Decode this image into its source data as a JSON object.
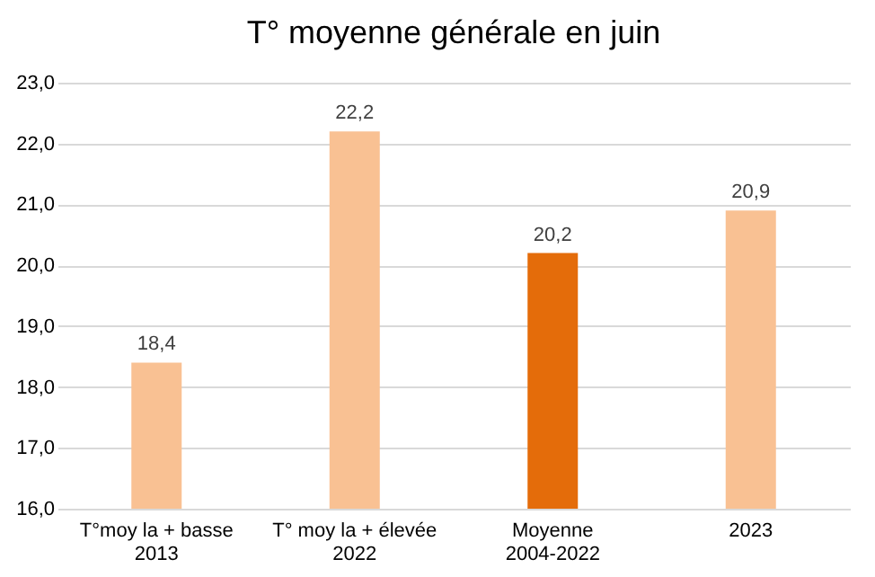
{
  "chart_data": {
    "type": "bar",
    "title": "T° moyenne générale en juin",
    "categories": [
      "T°moy la + basse\n2013",
      "T° moy la + élevée\n2022",
      "Moyenne\n2004-2022",
      "2023"
    ],
    "values": [
      18.4,
      22.2,
      20.2,
      20.9
    ],
    "colors": [
      "#f9c193",
      "#f9c193",
      "#e46c0a",
      "#f9c193"
    ],
    "value_labels": [
      "18,4",
      "22,2",
      "20,2",
      "20,9"
    ],
    "ylim": [
      16,
      23
    ],
    "yticks": [
      {
        "value": 16,
        "label": "16,0"
      },
      {
        "value": 17,
        "label": "17,0"
      },
      {
        "value": 18,
        "label": "18,0"
      },
      {
        "value": 19,
        "label": "19,0"
      },
      {
        "value": 20,
        "label": "20,0"
      },
      {
        "value": 21,
        "label": "21,0"
      },
      {
        "value": 22,
        "label": "22,0"
      },
      {
        "value": 23,
        "label": "23,0"
      }
    ],
    "grid": "y"
  }
}
